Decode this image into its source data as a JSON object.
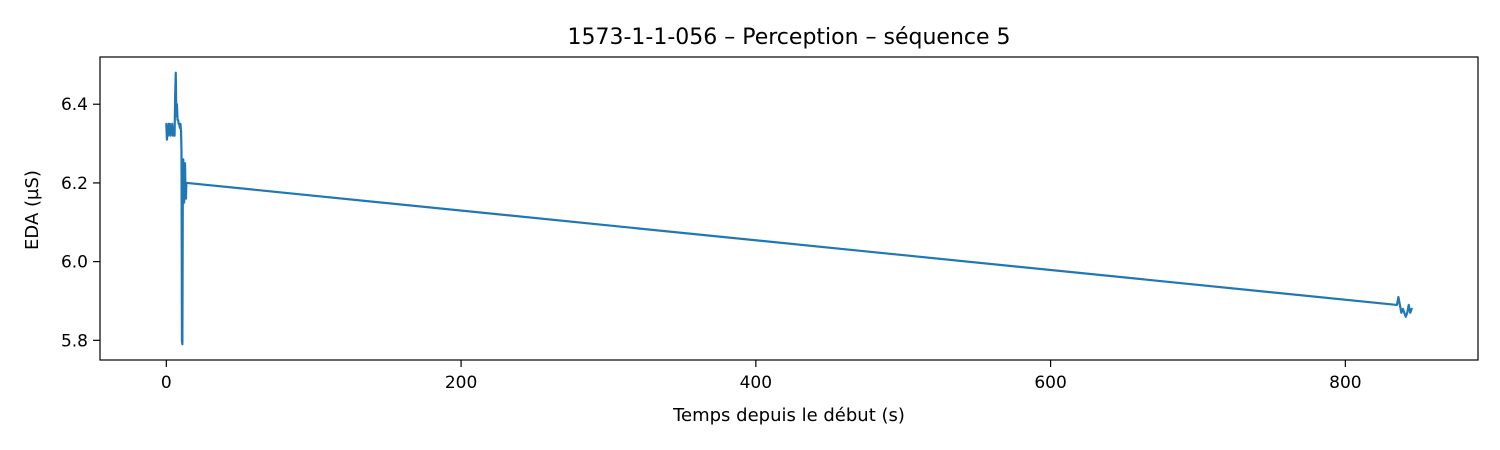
{
  "chart_data": {
    "type": "line",
    "title": "1573-1-1-056 – Perception – séquence 5",
    "xlabel": "Temps depuis le début (s)",
    "ylabel": "EDA (µS)",
    "xlim": [
      -45,
      890
    ],
    "ylim": [
      5.75,
      6.52
    ],
    "xticks": [
      0,
      200,
      400,
      600,
      800
    ],
    "yticks": [
      5.8,
      6.0,
      6.2,
      6.4
    ],
    "xtick_labels": [
      "0",
      "200",
      "400",
      "600",
      "800"
    ],
    "ytick_labels": [
      "5.8",
      "6.0",
      "6.2",
      "6.4"
    ],
    "grid": false,
    "legend": "none",
    "series": [
      {
        "color": "#1f77b4",
        "x": [
          0.0,
          0.4,
          0.8,
          1.2,
          1.6,
          2.0,
          2.4,
          2.8,
          3.2,
          3.6,
          4.0,
          4.4,
          4.8,
          5.2,
          5.6,
          6.0,
          6.4,
          6.8,
          7.2,
          7.6,
          8.0,
          8.4,
          8.8,
          9.2,
          9.6,
          10.0,
          10.3,
          10.6,
          10.9,
          11.2,
          11.5,
          11.8,
          12.1,
          12.4,
          12.7,
          13.0,
          13.3,
          13.6,
          14.0,
          835.0,
          836.0,
          837.0,
          838.0,
          839.0,
          840.0,
          841.0,
          842.0,
          843.0,
          844.0,
          845.0
        ],
        "y": [
          6.35,
          6.31,
          6.34,
          6.32,
          6.35,
          6.33,
          6.35,
          6.32,
          6.34,
          6.33,
          6.35,
          6.32,
          6.34,
          6.33,
          6.32,
          6.42,
          6.48,
          6.37,
          6.4,
          6.36,
          6.36,
          6.35,
          6.35,
          6.34,
          6.35,
          6.33,
          6.28,
          5.8,
          5.79,
          6.2,
          6.26,
          6.2,
          6.15,
          6.22,
          6.25,
          6.18,
          6.16,
          6.2,
          6.2,
          5.89,
          5.91,
          5.89,
          5.87,
          5.88,
          5.87,
          5.86,
          5.87,
          5.89,
          5.87,
          5.88
        ]
      }
    ]
  }
}
